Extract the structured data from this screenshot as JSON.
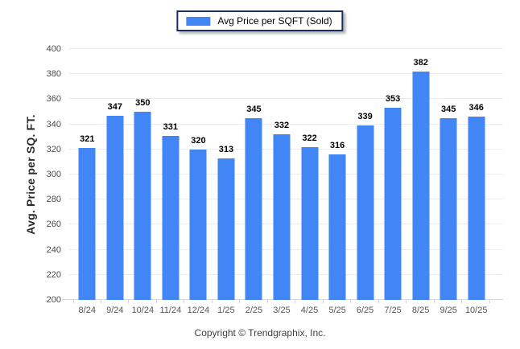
{
  "legend": {
    "label": "Avg Price per SQFT (Sold)"
  },
  "footer": {
    "copyright": "Copyright © Trendgraphix, Inc."
  },
  "colors": {
    "bar": "#4285f4",
    "legend_border": "#1b2e63",
    "grid": "#ececec",
    "axis_line": "#d9d9d9",
    "value_label": "#000000",
    "tick_label": "#555555"
  },
  "chart_data": {
    "type": "bar",
    "title": "",
    "series_name": "Avg Price per SQFT (Sold)",
    "categories": [
      "8/24",
      "9/24",
      "10/24",
      "11/24",
      "12/24",
      "1/25",
      "2/25",
      "3/25",
      "4/25",
      "5/25",
      "6/25",
      "7/25",
      "8/25",
      "9/25",
      "10/25"
    ],
    "values": [
      321,
      347,
      350,
      331,
      320,
      313,
      345,
      332,
      322,
      316,
      339,
      353,
      382,
      345,
      346
    ],
    "xlabel": "",
    "ylabel": "Avg. Price per SQ. FT.",
    "ylim": [
      200,
      400
    ],
    "ytick_step": 20,
    "grid": true,
    "legend_position": "top-center",
    "bar_color": "#4285f4",
    "value_labels_shown": true
  }
}
